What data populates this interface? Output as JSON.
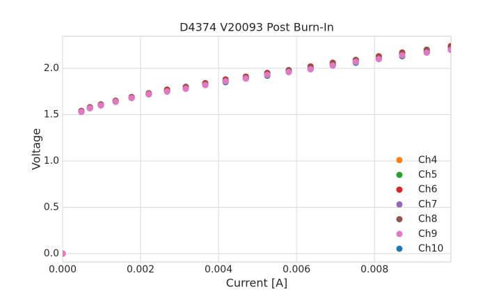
{
  "chart_data": {
    "type": "scatter",
    "title": "D4374 V20093 Post Burn-In",
    "xlabel": "Current [A]",
    "ylabel": "Voltage",
    "x": [
      0,
      0.00048,
      0.0007,
      0.00098,
      0.00136,
      0.00177,
      0.00221,
      0.00268,
      0.00316,
      0.00366,
      0.00418,
      0.0047,
      0.00525,
      0.0058,
      0.00636,
      0.00693,
      0.00752,
      0.00811,
      0.00871,
      0.00934,
      0.00996
    ],
    "series": [
      {
        "name": "Ch4",
        "color": "#ff7f0e",
        "values": [
          0,
          1.53,
          1.57,
          1.61,
          1.64,
          1.68,
          1.72,
          1.76,
          1.79,
          1.83,
          1.86,
          1.9,
          1.94,
          1.97,
          2.0,
          2.04,
          2.08,
          2.11,
          2.15,
          2.18,
          2.21
        ]
      },
      {
        "name": "Ch5",
        "color": "#2ca02c",
        "values": [
          0,
          1.53,
          1.57,
          1.6,
          1.64,
          1.68,
          1.72,
          1.75,
          1.79,
          1.82,
          1.86,
          1.89,
          1.93,
          1.97,
          2.0,
          2.04,
          2.07,
          2.11,
          2.14,
          2.18,
          2.21
        ]
      },
      {
        "name": "Ch6",
        "color": "#d62728",
        "values": [
          0,
          1.54,
          1.58,
          1.61,
          1.65,
          1.69,
          1.73,
          1.77,
          1.8,
          1.84,
          1.88,
          1.91,
          1.95,
          1.98,
          2.02,
          2.06,
          2.09,
          2.13,
          2.17,
          2.2,
          2.24
        ]
      },
      {
        "name": "Ch7",
        "color": "#9467bd",
        "values": [
          0,
          1.53,
          1.57,
          1.6,
          1.64,
          1.68,
          1.72,
          1.75,
          1.78,
          1.82,
          1.86,
          1.89,
          1.93,
          1.96,
          1.99,
          2.03,
          2.07,
          2.1,
          2.14,
          2.17,
          2.2
        ]
      },
      {
        "name": "Ch8",
        "color": "#8c564b",
        "values": [
          0,
          1.54,
          1.58,
          1.61,
          1.65,
          1.69,
          1.73,
          1.76,
          1.8,
          1.83,
          1.87,
          1.9,
          1.94,
          1.98,
          2.01,
          2.05,
          2.09,
          2.12,
          2.16,
          2.2,
          2.23
        ]
      },
      {
        "name": "Ch9",
        "color": "#e377c2",
        "values": [
          0,
          1.53,
          1.57,
          1.6,
          1.64,
          1.68,
          1.72,
          1.75,
          1.78,
          1.82,
          1.86,
          1.89,
          1.93,
          1.96,
          1.99,
          2.03,
          2.07,
          2.1,
          2.14,
          2.17,
          2.2
        ]
      },
      {
        "name": "Ch10",
        "color": "#1f77b4",
        "values": [
          0,
          1.53,
          1.57,
          1.6,
          1.64,
          1.68,
          1.72,
          1.75,
          1.78,
          1.82,
          1.85,
          1.89,
          1.92,
          1.96,
          1.99,
          2.03,
          2.06,
          2.1,
          2.13,
          2.17,
          2.2
        ]
      }
    ],
    "xlim": [
      0,
      0.00996
    ],
    "ylim": [
      -0.09,
      2.346
    ],
    "xticks": [
      {
        "value": 0,
        "label": "0.000"
      },
      {
        "value": 0.002,
        "label": "0.002"
      },
      {
        "value": 0.004,
        "label": "0.004"
      },
      {
        "value": 0.006,
        "label": "0.006"
      },
      {
        "value": 0.008,
        "label": "0.008"
      }
    ],
    "yticks": [
      {
        "value": 0,
        "label": "0.0"
      },
      0.5,
      {
        "value": 1,
        "label": "1.0"
      },
      1.5,
      {
        "value": 2,
        "label": "2.0"
      }
    ],
    "grid": true,
    "legend": "lower right"
  }
}
